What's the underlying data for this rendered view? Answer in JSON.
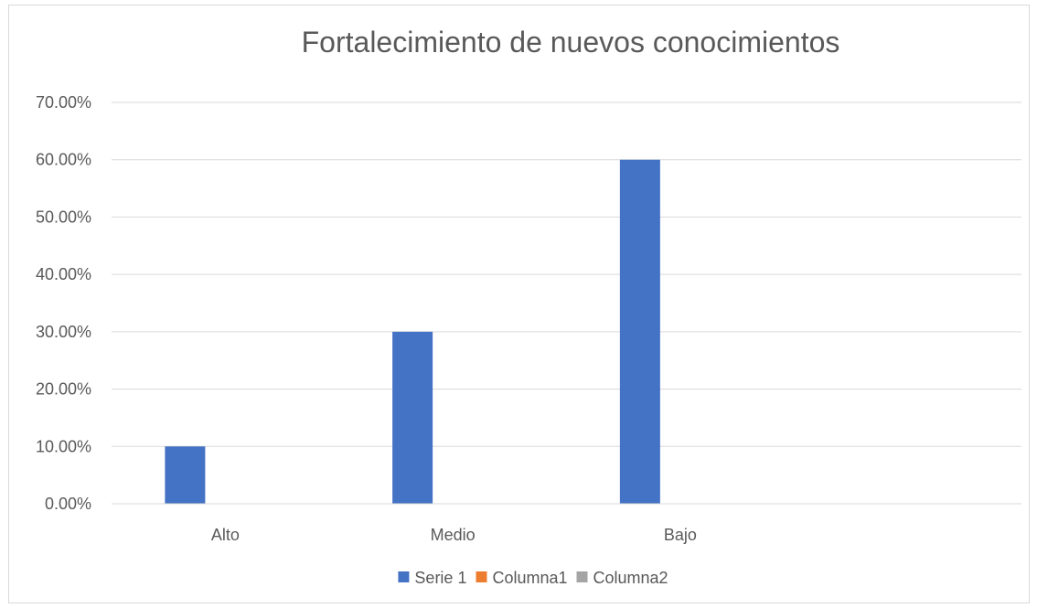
{
  "chart_data": {
    "type": "bar",
    "title": "Fortalecimiento de nuevos conocimientos",
    "categories": [
      "Alto",
      "Medio",
      "Bajo",
      ""
    ],
    "series": [
      {
        "name": "Serie 1",
        "values": [
          0.1,
          0.3,
          0.6,
          null
        ],
        "color": "#4472c4"
      },
      {
        "name": "Columna1",
        "values": [
          null,
          null,
          null,
          null
        ],
        "color": "#ed7d31"
      },
      {
        "name": "Columna2",
        "values": [
          null,
          null,
          null,
          null
        ],
        "color": "#a5a5a5"
      }
    ],
    "ylim": [
      0,
      0.7
    ],
    "yticks": [
      "0.00%",
      "10.00%",
      "20.00%",
      "30.00%",
      "40.00%",
      "50.00%",
      "60.00%",
      "70.00%"
    ],
    "grid": true,
    "legend_position": "bottom"
  }
}
